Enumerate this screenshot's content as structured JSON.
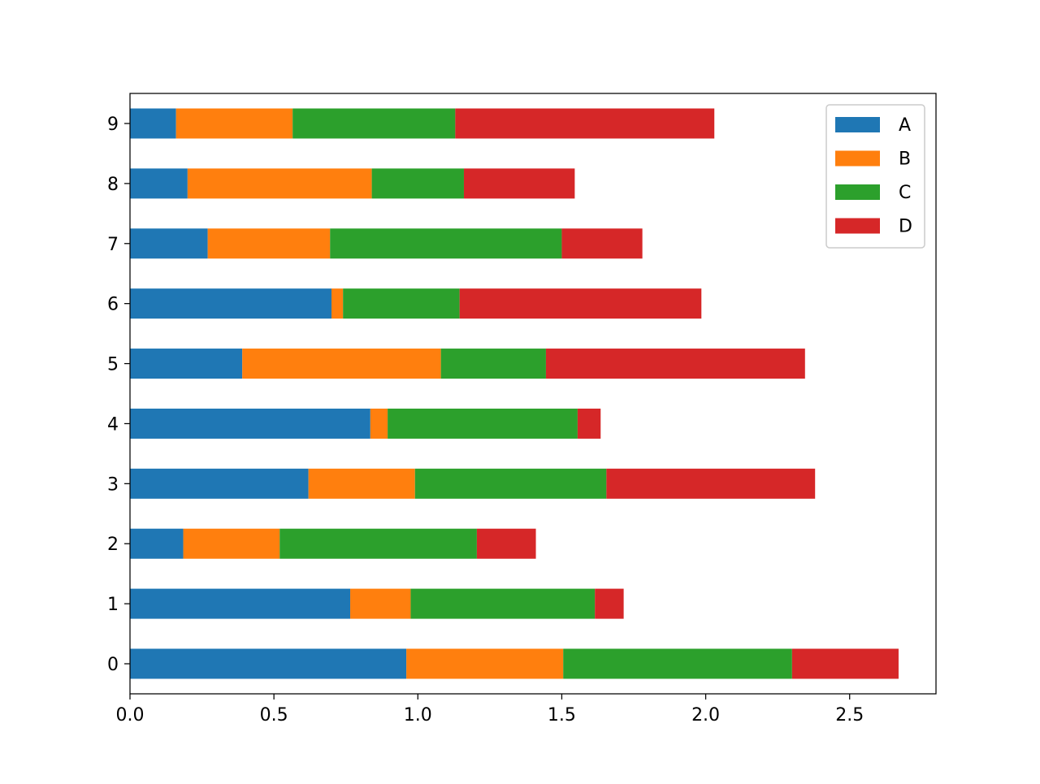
{
  "chart_data": {
    "type": "bar",
    "orientation": "horizontal",
    "stacked": true,
    "categories": [
      "0",
      "1",
      "2",
      "3",
      "4",
      "5",
      "6",
      "7",
      "8",
      "9"
    ],
    "series": [
      {
        "name": "A",
        "color": "#1f77b4",
        "values": [
          0.96,
          0.765,
          0.185,
          0.62,
          0.835,
          0.39,
          0.7,
          0.27,
          0.2,
          0.16
        ]
      },
      {
        "name": "B",
        "color": "#ff7f0e",
        "values": [
          0.545,
          0.21,
          0.335,
          0.37,
          0.06,
          0.69,
          0.04,
          0.425,
          0.64,
          0.405
        ]
      },
      {
        "name": "C",
        "color": "#2ca02c",
        "values": [
          0.795,
          0.64,
          0.685,
          0.665,
          0.66,
          0.365,
          0.405,
          0.805,
          0.32,
          0.565
        ]
      },
      {
        "name": "D",
        "color": "#d62728",
        "values": [
          0.37,
          0.1,
          0.205,
          0.725,
          0.08,
          0.9,
          0.84,
          0.28,
          0.385,
          0.9
        ]
      }
    ],
    "xlim": [
      0,
      2.8
    ],
    "xticks": [
      "0.0",
      "0.5",
      "1.0",
      "1.5",
      "2.0",
      "2.5"
    ],
    "xlabel": "",
    "ylabel": "",
    "title": "",
    "grid": false,
    "legend_position": "top-right"
  }
}
